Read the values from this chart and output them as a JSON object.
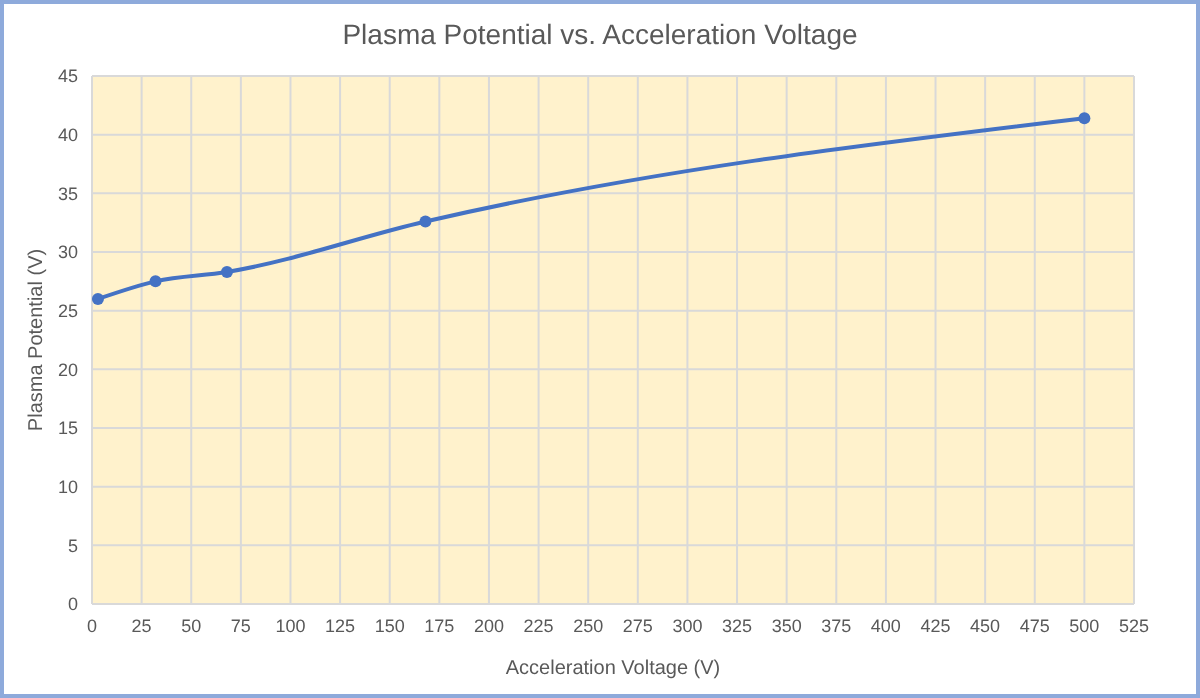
{
  "chart_data": {
    "type": "line",
    "title": "Plasma Potential vs. Acceleration Voltage",
    "xlabel": "Acceleration Voltage (V)",
    "ylabel": "Plasma Potential (V)",
    "series": [
      {
        "color": "#4472c4",
        "x": [
          3,
          32,
          68,
          168,
          500
        ],
        "values": [
          26.0,
          27.5,
          28.3,
          32.6,
          41.4
        ]
      }
    ],
    "xlim": [
      0,
      525
    ],
    "xticks": [
      0,
      25,
      50,
      75,
      100,
      125,
      150,
      175,
      200,
      225,
      250,
      275,
      300,
      325,
      350,
      375,
      400,
      425,
      450,
      475,
      500,
      525
    ],
    "ylim": [
      0,
      45
    ],
    "yticks": [
      0,
      5,
      10,
      15,
      20,
      25,
      30,
      35,
      40,
      45
    ],
    "grid": true,
    "marker": "circle",
    "line_style": "solid"
  }
}
